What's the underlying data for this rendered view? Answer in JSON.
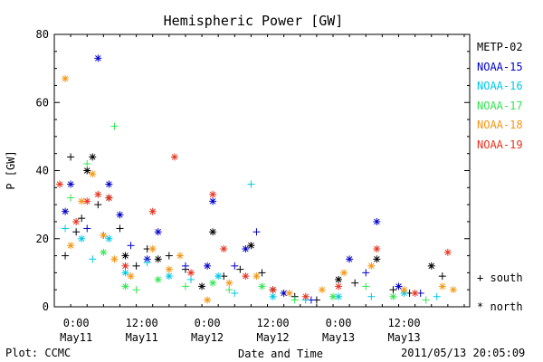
{
  "chart_data": {
    "type": "scatter",
    "title": "Hemispheric Power [GW]",
    "ylabel": "P [GW]",
    "xlabel": "Date and Time",
    "ylim": [
      0,
      80
    ],
    "yticks": [
      0,
      20,
      40,
      60,
      80
    ],
    "xlim": [
      "2011-05-10T20:00",
      "2011-05-14T00:00"
    ],
    "xticks": [
      {
        "x": "2011-05-11T00:00",
        "time": "0:00",
        "date": "May11"
      },
      {
        "x": "2011-05-11T12:00",
        "time": "12:00",
        "date": "May11"
      },
      {
        "x": "2011-05-12T00:00",
        "time": "0:00",
        "date": "May12"
      },
      {
        "x": "2011-05-12T12:00",
        "time": "12:00",
        "date": "May12"
      },
      {
        "x": "2011-05-13T00:00",
        "time": "0:00",
        "date": "May13"
      },
      {
        "x": "2011-05-13T12:00",
        "time": "12:00",
        "date": "May13"
      }
    ],
    "series": [
      {
        "name": "METP-02",
        "color": "#000000",
        "points": [
          {
            "x": "2011-05-10T22:00",
            "y": 15,
            "m": "+"
          },
          {
            "x": "2011-05-10T23:00",
            "y": 44,
            "m": "+"
          },
          {
            "x": "2011-05-11T00:00",
            "y": 22,
            "m": "+"
          },
          {
            "x": "2011-05-11T01:00",
            "y": 26,
            "m": "+"
          },
          {
            "x": "2011-05-11T02:00",
            "y": 40,
            "m": "*"
          },
          {
            "x": "2011-05-11T03:00",
            "y": 44,
            "m": "*"
          },
          {
            "x": "2011-05-11T04:00",
            "y": 30,
            "m": "+"
          },
          {
            "x": "2011-05-11T05:00",
            "y": 21,
            "m": "+"
          },
          {
            "x": "2011-05-11T06:00",
            "y": 32,
            "m": "*"
          },
          {
            "x": "2011-05-11T08:00",
            "y": 23,
            "m": "+"
          },
          {
            "x": "2011-05-11T09:00",
            "y": 15,
            "m": "*"
          },
          {
            "x": "2011-05-11T11:00",
            "y": 12,
            "m": "+"
          },
          {
            "x": "2011-05-11T13:00",
            "y": 17,
            "m": "+"
          },
          {
            "x": "2011-05-11T15:00",
            "y": 14,
            "m": "*"
          },
          {
            "x": "2011-05-11T17:00",
            "y": 15,
            "m": "+"
          },
          {
            "x": "2011-05-11T20:00",
            "y": 11,
            "m": "+"
          },
          {
            "x": "2011-05-11T23:00",
            "y": 6,
            "m": "*"
          },
          {
            "x": "2011-05-12T01:00",
            "y": 22,
            "m": "*"
          },
          {
            "x": "2011-05-12T03:00",
            "y": 9,
            "m": "+"
          },
          {
            "x": "2011-05-12T06:00",
            "y": 11,
            "m": "+"
          },
          {
            "x": "2011-05-12T08:00",
            "y": 18,
            "m": "*"
          },
          {
            "x": "2011-05-12T10:00",
            "y": 10,
            "m": "+"
          },
          {
            "x": "2011-05-12T12:00",
            "y": 5,
            "m": "*"
          },
          {
            "x": "2011-05-12T16:00",
            "y": 3,
            "m": "+"
          },
          {
            "x": "2011-05-12T20:00",
            "y": 2,
            "m": "+"
          },
          {
            "x": "2011-05-13T00:00",
            "y": 8,
            "m": "*"
          },
          {
            "x": "2011-05-13T03:00",
            "y": 7,
            "m": "+"
          },
          {
            "x": "2011-05-13T07:00",
            "y": 14,
            "m": "*"
          },
          {
            "x": "2011-05-13T10:00",
            "y": 5,
            "m": "+"
          },
          {
            "x": "2011-05-13T13:00",
            "y": 4,
            "m": "+"
          },
          {
            "x": "2011-05-13T17:00",
            "y": 12,
            "m": "*"
          },
          {
            "x": "2011-05-13T19:00",
            "y": 9,
            "m": "+"
          }
        ]
      },
      {
        "name": "NOAA-15",
        "color": "#0000c8",
        "points": [
          {
            "x": "2011-05-10T22:00",
            "y": 28,
            "m": "*"
          },
          {
            "x": "2011-05-10T23:00",
            "y": 36,
            "m": "*"
          },
          {
            "x": "2011-05-11T02:00",
            "y": 23,
            "m": "+"
          },
          {
            "x": "2011-05-11T04:00",
            "y": 73,
            "m": "*"
          },
          {
            "x": "2011-05-11T06:00",
            "y": 36,
            "m": "*"
          },
          {
            "x": "2011-05-11T08:00",
            "y": 27,
            "m": "*"
          },
          {
            "x": "2011-05-11T10:00",
            "y": 18,
            "m": "+"
          },
          {
            "x": "2011-05-11T13:00",
            "y": 14,
            "m": "*"
          },
          {
            "x": "2011-05-11T15:00",
            "y": 22,
            "m": "*"
          },
          {
            "x": "2011-05-11T20:00",
            "y": 12,
            "m": "+"
          },
          {
            "x": "2011-05-12T00:00",
            "y": 12,
            "m": "*"
          },
          {
            "x": "2011-05-12T01:00",
            "y": 31,
            "m": "*"
          },
          {
            "x": "2011-05-12T05:00",
            "y": 12,
            "m": "+"
          },
          {
            "x": "2011-05-12T07:00",
            "y": 17,
            "m": "*"
          },
          {
            "x": "2011-05-12T09:00",
            "y": 22,
            "m": "+"
          },
          {
            "x": "2011-05-12T14:00",
            "y": 4,
            "m": "*"
          },
          {
            "x": "2011-05-12T19:00",
            "y": 2,
            "m": "+"
          },
          {
            "x": "2011-05-13T02:00",
            "y": 14,
            "m": "*"
          },
          {
            "x": "2011-05-13T05:00",
            "y": 10,
            "m": "+"
          },
          {
            "x": "2011-05-13T07:00",
            "y": 25,
            "m": "*"
          },
          {
            "x": "2011-05-13T11:00",
            "y": 6,
            "m": "*"
          },
          {
            "x": "2011-05-13T15:00",
            "y": 4,
            "m": "+"
          }
        ]
      },
      {
        "name": "NOAA-16",
        "color": "#00c8e6",
        "points": [
          {
            "x": "2011-05-10T22:00",
            "y": 23,
            "m": "+"
          },
          {
            "x": "2011-05-11T01:00",
            "y": 20,
            "m": "*"
          },
          {
            "x": "2011-05-11T03:00",
            "y": 14,
            "m": "+"
          },
          {
            "x": "2011-05-11T06:00",
            "y": 20,
            "m": "*"
          },
          {
            "x": "2011-05-11T09:00",
            "y": 10,
            "m": "*"
          },
          {
            "x": "2011-05-11T13:00",
            "y": 13,
            "m": "+"
          },
          {
            "x": "2011-05-11T17:00",
            "y": 9,
            "m": "*"
          },
          {
            "x": "2011-05-11T21:00",
            "y": 8,
            "m": "+"
          },
          {
            "x": "2011-05-12T02:00",
            "y": 9,
            "m": "*"
          },
          {
            "x": "2011-05-12T05:00",
            "y": 4,
            "m": "+"
          },
          {
            "x": "2011-05-12T08:00",
            "y": 36,
            "m": "+"
          },
          {
            "x": "2011-05-12T12:00",
            "y": 3,
            "m": "*"
          },
          {
            "x": "2011-05-12T18:00",
            "y": 2,
            "m": "+"
          },
          {
            "x": "2011-05-13T00:00",
            "y": 3,
            "m": "*"
          },
          {
            "x": "2011-05-13T06:00",
            "y": 3,
            "m": "+"
          },
          {
            "x": "2011-05-13T12:00",
            "y": 4,
            "m": "*"
          },
          {
            "x": "2011-05-13T18:00",
            "y": 3,
            "m": "+"
          }
        ]
      },
      {
        "name": "NOAA-17",
        "color": "#32e650",
        "points": [
          {
            "x": "2011-05-10T23:00",
            "y": 32,
            "m": "+"
          },
          {
            "x": "2011-05-11T02:00",
            "y": 42,
            "m": "+"
          },
          {
            "x": "2011-05-11T05:00",
            "y": 16,
            "m": "*"
          },
          {
            "x": "2011-05-11T07:00",
            "y": 53,
            "m": "+"
          },
          {
            "x": "2011-05-11T09:00",
            "y": 6,
            "m": "*"
          },
          {
            "x": "2011-05-11T11:00",
            "y": 5,
            "m": "+"
          },
          {
            "x": "2011-05-11T15:00",
            "y": 8,
            "m": "*"
          },
          {
            "x": "2011-05-11T20:00",
            "y": 6,
            "m": "+"
          },
          {
            "x": "2011-05-12T01:00",
            "y": 7,
            "m": "*"
          },
          {
            "x": "2011-05-12T04:00",
            "y": 5,
            "m": "+"
          },
          {
            "x": "2011-05-12T10:00",
            "y": 6,
            "m": "*"
          },
          {
            "x": "2011-05-12T16:00",
            "y": 2,
            "m": "+"
          },
          {
            "x": "2011-05-12T23:00",
            "y": 3,
            "m": "*"
          },
          {
            "x": "2011-05-13T05:00",
            "y": 6,
            "m": "+"
          },
          {
            "x": "2011-05-13T10:00",
            "y": 3,
            "m": "*"
          },
          {
            "x": "2011-05-13T16:00",
            "y": 2,
            "m": "+"
          }
        ]
      },
      {
        "name": "NOAA-18",
        "color": "#f59614",
        "points": [
          {
            "x": "2011-05-10T22:00",
            "y": 67,
            "m": "*"
          },
          {
            "x": "2011-05-10T23:00",
            "y": 18,
            "m": "*"
          },
          {
            "x": "2011-05-11T01:00",
            "y": 31,
            "m": "*"
          },
          {
            "x": "2011-05-11T03:00",
            "y": 39,
            "m": "*"
          },
          {
            "x": "2011-05-11T05:00",
            "y": 21,
            "m": "*"
          },
          {
            "x": "2011-05-11T07:00",
            "y": 14,
            "m": "*"
          },
          {
            "x": "2011-05-11T10:00",
            "y": 9,
            "m": "*"
          },
          {
            "x": "2011-05-11T14:00",
            "y": 17,
            "m": "*"
          },
          {
            "x": "2011-05-11T17:00",
            "y": 11,
            "m": "*"
          },
          {
            "x": "2011-05-11T19:00",
            "y": 15,
            "m": "*"
          },
          {
            "x": "2011-05-12T00:00",
            "y": 2,
            "m": "*"
          },
          {
            "x": "2011-05-12T04:00",
            "y": 7,
            "m": "*"
          },
          {
            "x": "2011-05-12T09:00",
            "y": 9,
            "m": "*"
          },
          {
            "x": "2011-05-12T15:00",
            "y": 4,
            "m": "*"
          },
          {
            "x": "2011-05-12T21:00",
            "y": 5,
            "m": "*"
          },
          {
            "x": "2011-05-13T01:00",
            "y": 10,
            "m": "*"
          },
          {
            "x": "2011-05-13T06:00",
            "y": 12,
            "m": "*"
          },
          {
            "x": "2011-05-13T12:00",
            "y": 5,
            "m": "*"
          },
          {
            "x": "2011-05-13T19:00",
            "y": 6,
            "m": "*"
          },
          {
            "x": "2011-05-13T21:00",
            "y": 5,
            "m": "*"
          }
        ]
      },
      {
        "name": "NOAA-19",
        "color": "#e6321e",
        "points": [
          {
            "x": "2011-05-10T21:00",
            "y": 36,
            "m": "*"
          },
          {
            "x": "2011-05-11T00:00",
            "y": 25,
            "m": "*"
          },
          {
            "x": "2011-05-11T02:00",
            "y": 31,
            "m": "*"
          },
          {
            "x": "2011-05-11T04:00",
            "y": 33,
            "m": "*"
          },
          {
            "x": "2011-05-11T06:00",
            "y": 32,
            "m": "*"
          },
          {
            "x": "2011-05-11T09:00",
            "y": 12,
            "m": "*"
          },
          {
            "x": "2011-05-11T14:00",
            "y": 28,
            "m": "*"
          },
          {
            "x": "2011-05-11T18:00",
            "y": 44,
            "m": "*"
          },
          {
            "x": "2011-05-11T21:00",
            "y": 10,
            "m": "*"
          },
          {
            "x": "2011-05-12T01:00",
            "y": 33,
            "m": "*"
          },
          {
            "x": "2011-05-12T03:00",
            "y": 17,
            "m": "*"
          },
          {
            "x": "2011-05-12T07:00",
            "y": 9,
            "m": "*"
          },
          {
            "x": "2011-05-12T12:00",
            "y": 5,
            "m": "*"
          },
          {
            "x": "2011-05-12T18:00",
            "y": 3,
            "m": "*"
          },
          {
            "x": "2011-05-13T00:00",
            "y": 6,
            "m": "*"
          },
          {
            "x": "2011-05-13T07:00",
            "y": 17,
            "m": "*"
          },
          {
            "x": "2011-05-13T14:00",
            "y": 4,
            "m": "*"
          },
          {
            "x": "2011-05-13T20:00",
            "y": 16,
            "m": "*"
          }
        ]
      }
    ],
    "symbol_legend": [
      {
        "marker": "+",
        "label": "south"
      },
      {
        "marker": "*",
        "label": "north"
      }
    ],
    "footer_left": "Plot: CCMC",
    "footer_right": "2011/05/13 20:05:09"
  }
}
